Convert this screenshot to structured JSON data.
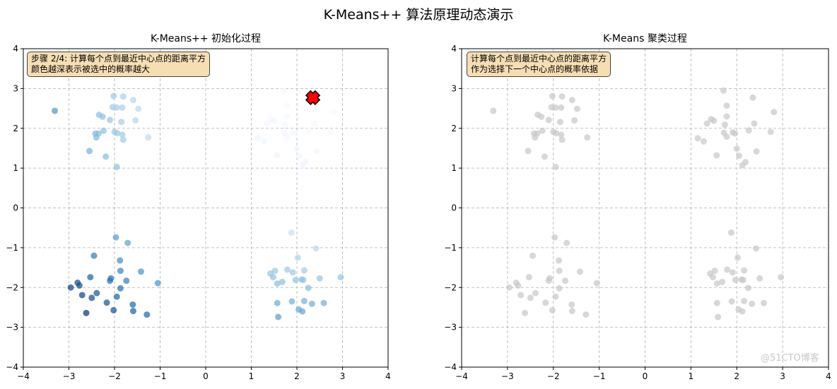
{
  "title": "K-Means++ 算法原理动态演示",
  "watermark": "@51CTO博客",
  "chart_data": [
    {
      "type": "scatter",
      "title": "K-Means++ 初始化过程",
      "annotation": [
        "步骤 2/4: 计算每个点到最近中心点的距离平方",
        "颜色越深表示被选中的概率越大"
      ],
      "xlim": [
        -4,
        4
      ],
      "ylim": [
        -4,
        4
      ],
      "xticks": [
        -4,
        -3,
        -2,
        -1,
        0,
        1,
        2,
        3,
        4
      ],
      "yticks": [
        -4,
        -3,
        -2,
        -1,
        0,
        1,
        2,
        3,
        4
      ],
      "grid": true,
      "colormap": "Blues",
      "color_encoding": "squared distance to nearest center",
      "centers": [
        {
          "x": 2.35,
          "y": 2.77,
          "marker": "X",
          "color": "#ff0000"
        }
      ]
    },
    {
      "type": "scatter",
      "title": "K-Means 聚类过程",
      "annotation": [
        "计算每个点到最近中心点的距离平方",
        "作为选择下一个中心点的概率依据"
      ],
      "xlim": [
        -4,
        4
      ],
      "ylim": [
        -4,
        4
      ],
      "xticks": [
        -4,
        -3,
        -2,
        -1,
        0,
        1,
        2,
        3,
        4
      ],
      "yticks": [
        -4,
        -3,
        -2,
        -1,
        0,
        1,
        2,
        3,
        4
      ],
      "grid": true,
      "point_color": "#c8c8c8"
    }
  ],
  "points": [
    [
      -3.31,
      2.44
    ],
    [
      -2.02,
      2.81
    ],
    [
      -1.81,
      2.8
    ],
    [
      -1.59,
      2.71
    ],
    [
      -2.04,
      2.53
    ],
    [
      -1.95,
      2.52
    ],
    [
      -1.83,
      2.52
    ],
    [
      -1.48,
      2.49
    ],
    [
      -2.34,
      2.34
    ],
    [
      -2.26,
      2.29
    ],
    [
      -2.1,
      2.21
    ],
    [
      -1.85,
      2.16
    ],
    [
      -1.54,
      2.2
    ],
    [
      -2.24,
      1.94
    ],
    [
      -2.42,
      1.87
    ],
    [
      -2.35,
      1.87
    ],
    [
      -2.4,
      1.77
    ],
    [
      -2.0,
      1.91
    ],
    [
      -1.94,
      1.88
    ],
    [
      -1.83,
      1.84
    ],
    [
      -1.81,
      1.71
    ],
    [
      -1.26,
      1.77
    ],
    [
      -2.55,
      1.43
    ],
    [
      -2.19,
      1.29
    ],
    [
      -1.95,
      1.03
    ],
    [
      1.71,
      2.95
    ],
    [
      1.78,
      2.57
    ],
    [
      2.81,
      2.41
    ],
    [
      1.78,
      2.3
    ],
    [
      1.44,
      2.23
    ],
    [
      1.5,
      2.19
    ],
    [
      1.35,
      2.12
    ],
    [
      1.74,
      2.09
    ],
    [
      2.38,
      2.12
    ],
    [
      2.26,
      1.95
    ],
    [
      2.74,
      1.91
    ],
    [
      1.72,
      1.89
    ],
    [
      1.91,
      1.9
    ],
    [
      1.96,
      1.87
    ],
    [
      1.78,
      1.79
    ],
    [
      1.15,
      1.75
    ],
    [
      1.28,
      1.67
    ],
    [
      2.0,
      1.49
    ],
    [
      2.43,
      1.42
    ],
    [
      1.56,
      1.32
    ],
    [
      2.05,
      1.31
    ],
    [
      2.19,
      1.15
    ],
    [
      2.12,
      1.07
    ],
    [
      2.35,
      2.77
    ],
    [
      -1.97,
      -0.74
    ],
    [
      -1.71,
      -0.88
    ],
    [
      -2.45,
      -1.2
    ],
    [
      -1.88,
      -1.32
    ],
    [
      -1.87,
      -1.58
    ],
    [
      -1.42,
      -1.6
    ],
    [
      -2.53,
      -1.74
    ],
    [
      -2.08,
      -1.77
    ],
    [
      -2.1,
      -1.83
    ],
    [
      -1.74,
      -1.83
    ],
    [
      -2.81,
      -1.88
    ],
    [
      -2.77,
      -1.95
    ],
    [
      -1.05,
      -1.89
    ],
    [
      -2.96,
      -2.0
    ],
    [
      -1.87,
      -2.02
    ],
    [
      -2.71,
      -2.19
    ],
    [
      -2.39,
      -2.14
    ],
    [
      -2.5,
      -2.26
    ],
    [
      -1.95,
      -2.23
    ],
    [
      -2.17,
      -2.38
    ],
    [
      -1.6,
      -2.43
    ],
    [
      -2.02,
      -2.57
    ],
    [
      -1.59,
      -2.59
    ],
    [
      -1.29,
      -2.68
    ],
    [
      -2.62,
      -2.64
    ],
    [
      1.88,
      -0.62
    ],
    [
      2.42,
      -1.02
    ],
    [
      2.02,
      -1.25
    ],
    [
      1.52,
      -1.58
    ],
    [
      1.42,
      -1.65
    ],
    [
      1.48,
      -1.74
    ],
    [
      1.79,
      -1.55
    ],
    [
      1.91,
      -1.62
    ],
    [
      2.16,
      -1.57
    ],
    [
      2.96,
      -1.74
    ],
    [
      2.5,
      -1.77
    ],
    [
      1.97,
      -1.81
    ],
    [
      2.1,
      -1.8
    ],
    [
      2.14,
      -1.81
    ],
    [
      1.68,
      -1.86
    ],
    [
      1.57,
      -1.9
    ],
    [
      2.25,
      -2.01
    ],
    [
      1.57,
      -2.39
    ],
    [
      1.89,
      -2.35
    ],
    [
      2.16,
      -2.34
    ],
    [
      2.33,
      -2.41
    ],
    [
      2.59,
      -2.39
    ],
    [
      2.04,
      -2.55
    ],
    [
      2.12,
      -2.6
    ],
    [
      1.59,
      -2.74
    ]
  ]
}
